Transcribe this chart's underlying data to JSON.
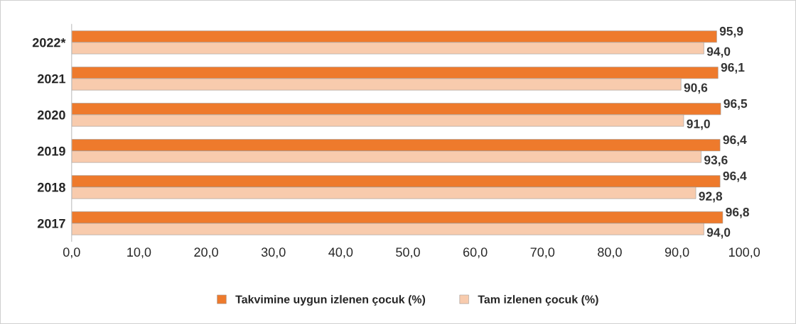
{
  "chart_data": {
    "type": "bar",
    "orientation": "horizontal",
    "categories": [
      "2022*",
      "2021",
      "2020",
      "2019",
      "2018",
      "2017"
    ],
    "series": [
      {
        "name": "Takvimine uygun izlenen çocuk (%)",
        "color": "#ee7a2c",
        "values": [
          95.9,
          96.1,
          96.5,
          96.4,
          96.4,
          96.8
        ],
        "value_labels": [
          "95,9",
          "96,1",
          "96,5",
          "96,4",
          "96,4",
          "96,8"
        ]
      },
      {
        "name": "Tam izlenen çocuk (%)",
        "color": "#f8cbad",
        "values": [
          94.0,
          90.6,
          91.0,
          93.6,
          92.8,
          94.0
        ],
        "value_labels": [
          "94,0",
          "90,6",
          "91,0",
          "93,6",
          "92,8",
          "94,0"
        ]
      }
    ],
    "xlim": [
      0,
      100
    ],
    "xticks": [
      {
        "value": 0,
        "label": "0,0"
      },
      {
        "value": 10,
        "label": "10,0"
      },
      {
        "value": 20,
        "label": "20,0"
      },
      {
        "value": 30,
        "label": "30,0"
      },
      {
        "value": 40,
        "label": "40,0"
      },
      {
        "value": 50,
        "label": "50,0"
      },
      {
        "value": 60,
        "label": "60,0"
      },
      {
        "value": 70,
        "label": "70,0"
      },
      {
        "value": 80,
        "label": "80,0"
      },
      {
        "value": 90,
        "label": "90,0"
      },
      {
        "value": 100,
        "label": "100,0"
      }
    ],
    "grid": false,
    "legend": "bottom"
  }
}
